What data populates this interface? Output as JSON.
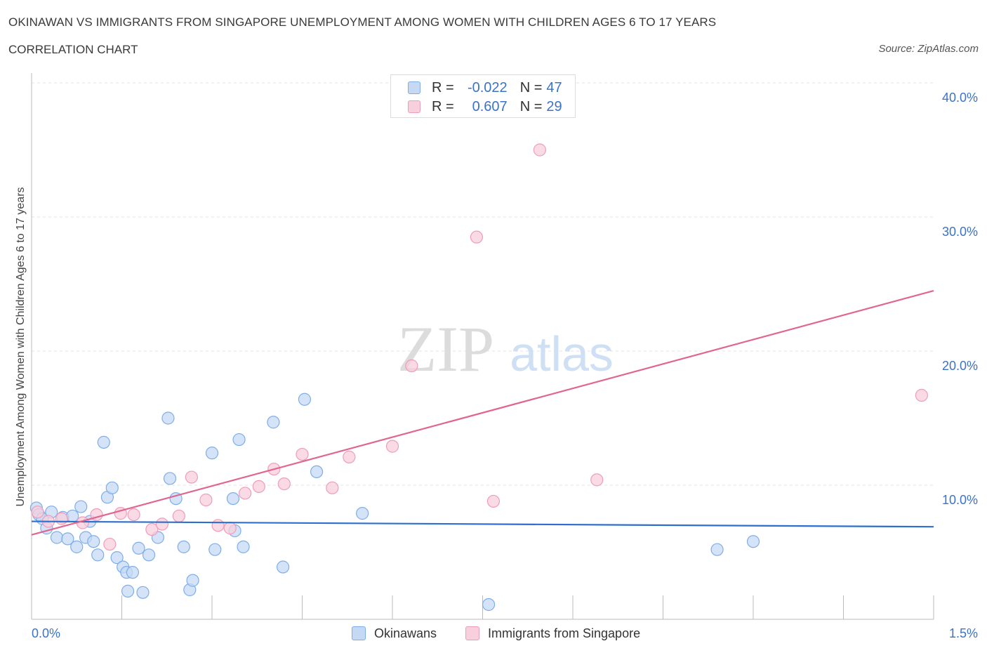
{
  "header": {
    "title": "OKINAWAN VS IMMIGRANTS FROM SINGAPORE UNEMPLOYMENT AMONG WOMEN WITH CHILDREN AGES 6 TO 17 YEARS",
    "subtitle": "CORRELATION CHART",
    "source": "Source: ZipAtlas.com"
  },
  "watermark": {
    "zip": "ZIP",
    "atlas": "atlas"
  },
  "legend": {
    "r_label": "R =",
    "n_label": "N =",
    "series": [
      {
        "r": "-0.022",
        "n": "47"
      },
      {
        "r": "0.607",
        "n": "29"
      }
    ]
  },
  "bottom_legend": [
    "Okinawans",
    "Immigrants from Singapore"
  ],
  "colors": {
    "blue_fill": "#c5d9f5",
    "blue_stroke": "#7eaee8",
    "blue_line": "#2d6fcc",
    "pink_fill": "#f8cfdc",
    "pink_stroke": "#ee9db8",
    "pink_line": "#e06690",
    "axis_text": "#3b73c9",
    "grid": "#e3e3e3"
  },
  "chart_data": {
    "type": "scatter",
    "title": "OKINAWAN VS IMMIGRANTS FROM SINGAPORE UNEMPLOYMENT AMONG WOMEN WITH CHILDREN AGES 6 TO 17 YEARS",
    "xlabel": "",
    "ylabel": "Unemployment Among Women with Children Ages 6 to 17 years",
    "xlim": [
      0,
      1.5
    ],
    "ylim": [
      0,
      40
    ],
    "x_tick_labels": [
      "0.0%",
      "1.5%"
    ],
    "y_ticks": [
      10,
      20,
      30,
      40
    ],
    "y_tick_labels": [
      "10.0%",
      "20.0%",
      "30.0%",
      "40.0%"
    ],
    "grid": true,
    "series": [
      {
        "name": "Okinawans",
        "r": -0.022,
        "n": 47,
        "trend": {
          "x": [
            0,
            1.5
          ],
          "y": [
            7.3,
            6.9
          ]
        },
        "points": [
          [
            0.008,
            8.3
          ],
          [
            0.012,
            7.8
          ],
          [
            0.018,
            7.5
          ],
          [
            0.025,
            6.8
          ],
          [
            0.033,
            8.0
          ],
          [
            0.042,
            6.1
          ],
          [
            0.052,
            7.6
          ],
          [
            0.06,
            6.0
          ],
          [
            0.068,
            7.7
          ],
          [
            0.075,
            5.4
          ],
          [
            0.082,
            8.4
          ],
          [
            0.09,
            6.1
          ],
          [
            0.097,
            7.3
          ],
          [
            0.103,
            5.8
          ],
          [
            0.11,
            4.8
          ],
          [
            0.12,
            13.2
          ],
          [
            0.126,
            9.1
          ],
          [
            0.134,
            9.8
          ],
          [
            0.142,
            4.6
          ],
          [
            0.152,
            3.9
          ],
          [
            0.158,
            3.5
          ],
          [
            0.16,
            2.1
          ],
          [
            0.168,
            3.5
          ],
          [
            0.178,
            5.3
          ],
          [
            0.185,
            2.0
          ],
          [
            0.195,
            4.8
          ],
          [
            0.21,
            6.1
          ],
          [
            0.227,
            15.0
          ],
          [
            0.23,
            10.5
          ],
          [
            0.24,
            9.0
          ],
          [
            0.253,
            5.4
          ],
          [
            0.263,
            2.2
          ],
          [
            0.268,
            2.9
          ],
          [
            0.3,
            12.4
          ],
          [
            0.305,
            5.2
          ],
          [
            0.335,
            9.0
          ],
          [
            0.338,
            6.6
          ],
          [
            0.345,
            13.4
          ],
          [
            0.352,
            5.4
          ],
          [
            0.402,
            14.7
          ],
          [
            0.418,
            3.9
          ],
          [
            0.454,
            16.4
          ],
          [
            0.474,
            11.0
          ],
          [
            0.55,
            7.9
          ],
          [
            0.76,
            1.1
          ],
          [
            1.14,
            5.2
          ],
          [
            1.2,
            5.8
          ]
        ]
      },
      {
        "name": "Immigrants from Singapore",
        "r": 0.607,
        "n": 29,
        "trend": {
          "x": [
            0,
            1.5
          ],
          "y": [
            6.3,
            24.5
          ]
        },
        "points": [
          [
            0.01,
            8.0
          ],
          [
            0.028,
            7.3
          ],
          [
            0.05,
            7.5
          ],
          [
            0.085,
            7.2
          ],
          [
            0.108,
            7.8
          ],
          [
            0.13,
            5.6
          ],
          [
            0.148,
            7.9
          ],
          [
            0.17,
            7.8
          ],
          [
            0.2,
            6.7
          ],
          [
            0.217,
            7.1
          ],
          [
            0.245,
            7.7
          ],
          [
            0.266,
            10.6
          ],
          [
            0.29,
            8.9
          ],
          [
            0.31,
            7.0
          ],
          [
            0.33,
            6.8
          ],
          [
            0.355,
            9.4
          ],
          [
            0.378,
            9.9
          ],
          [
            0.403,
            11.2
          ],
          [
            0.42,
            10.1
          ],
          [
            0.45,
            12.3
          ],
          [
            0.5,
            9.8
          ],
          [
            0.528,
            12.1
          ],
          [
            0.6,
            12.9
          ],
          [
            0.632,
            18.9
          ],
          [
            0.74,
            28.5
          ],
          [
            0.768,
            8.8
          ],
          [
            0.845,
            35.0
          ],
          [
            0.94,
            10.4
          ],
          [
            1.48,
            16.7
          ]
        ]
      }
    ]
  }
}
